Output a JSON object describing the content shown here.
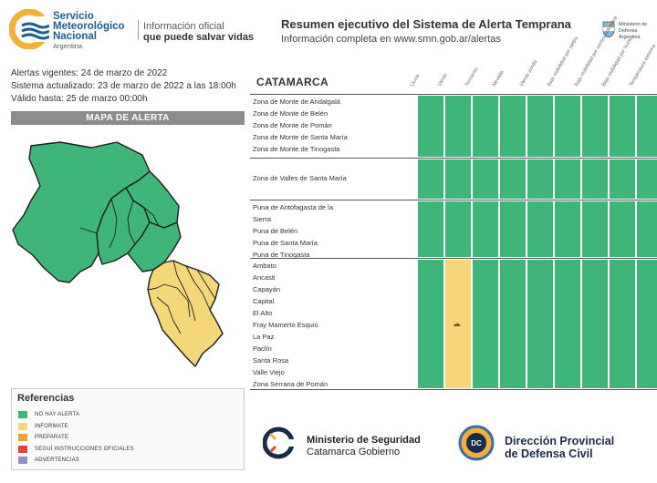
{
  "header": {
    "org_line1": "Servicio",
    "org_line2": "Meteorológico",
    "org_line3": "Nacional",
    "org_country": "Argentina",
    "slogan_line1": "Información oficial",
    "slogan_line2": "que puede salvar vidas",
    "summary_title": "Resumen ejecutivo del Sistema de Alerta Temprana",
    "summary_subtitle": "Información completa en www.smn.gob.ar/alertas",
    "ministry_text": "Ministerio de Defensa Argentina",
    "shield_icon": "argentina-shield-icon"
  },
  "info": {
    "alerts_valid": "Alertas vigentes: 24 de marzo de 2022",
    "system_updated": "Sistema actualizado: 23 de marzo de 2022 a las 18:00h",
    "valid_until": "Válido hasta: 25 de marzo 00:00h"
  },
  "map": {
    "title": "MAPA DE ALERTA"
  },
  "legend": {
    "title": "Referencias",
    "items": [
      {
        "label": "NO HAY ALERTA",
        "color": "#3fb57a"
      },
      {
        "label": "INFORMATE",
        "color": "#f5d77a"
      },
      {
        "label": "PREPARATE",
        "color": "#f0a044"
      },
      {
        "label": "SEGUÍ INSTRUCCIONES OFICIALES",
        "color": "#e0463c"
      },
      {
        "label": "ADVERTENCIAS",
        "color": "#9b8fbd"
      }
    ]
  },
  "table": {
    "province": "CATAMARCA",
    "columns": [
      "Lluvia",
      "Viento",
      "Tormenta",
      "Nevada",
      "Viento zonda",
      "Baja visibilidad por niebla",
      "Baja visibilidad por ceniza volcánica",
      "Baja visibilidad por humo",
      "Temperatura extrema"
    ],
    "groups": [
      {
        "zones": [
          "Zona de Monte de Andalgalá",
          "Zona de Monte de Belén",
          "Zona de Monte de Pomán",
          "Zona de Monte de Santa María",
          "Zona de Monte de Tinogasta"
        ],
        "levels": [
          "none",
          "none",
          "none",
          "none",
          "none",
          "none",
          "none",
          "none",
          "none"
        ]
      },
      {
        "zones": [
          "Zona de Valles de Santa María"
        ],
        "levels": [
          "none",
          "none",
          "none",
          "none",
          "none",
          "none",
          "none",
          "none",
          "none"
        ]
      },
      {
        "zones": [
          "Puna de Antofagasta de la",
          "Sierra",
          "Puna de Belén",
          "Puna de Santa María",
          "Puna de Tinogasta"
        ],
        "levels": [
          "none",
          "none",
          "none",
          "none",
          "none",
          "none",
          "none",
          "none",
          "none"
        ]
      },
      {
        "zones": [
          "Ambato",
          "Ancasti",
          "Capayán",
          "Capital",
          "El Alto",
          "Fray Mamerto Esquiú",
          "La Paz",
          "Paclín",
          "Santa Rosa",
          "Valle Viejo",
          "Zona Serrana de Pomán"
        ],
        "levels": [
          "none",
          "yellow",
          "none",
          "none",
          "none",
          "none",
          "none",
          "none",
          "none"
        ],
        "icon_name": "thunderstorm-icon",
        "icon_column": 1
      }
    ],
    "colors": {
      "none": "#3fb57a",
      "yellow": "#f5d77a"
    }
  },
  "footer": {
    "security_line1": "Ministerio de Seguridad",
    "security_line2": "Catamarca Gobierno",
    "civil_line1": "Dirección Provincial",
    "civil_line2": "de Defensa Civil",
    "civil_badge": "DC"
  }
}
